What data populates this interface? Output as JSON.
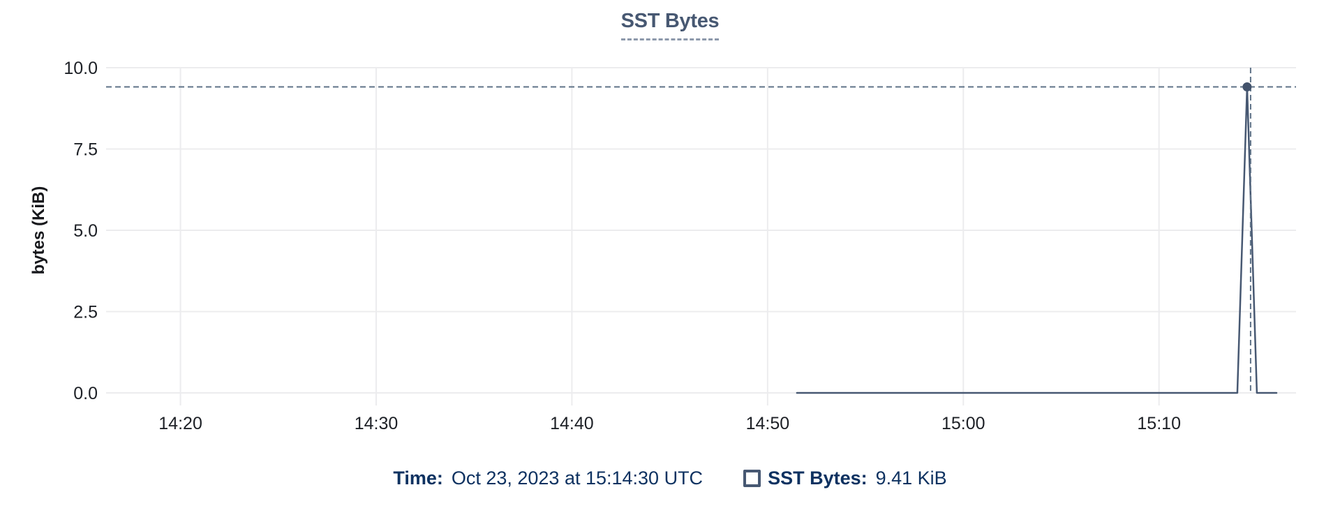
{
  "chart_data": {
    "type": "line",
    "title": "SST Bytes",
    "ylabel": "bytes (KiB)",
    "ylim": [
      0,
      10
    ],
    "y_ticks": [
      0,
      2.5,
      5,
      7.5,
      10
    ],
    "y_tick_decimals": 1,
    "x_ticks": [
      "14:20",
      "14:30",
      "14:40",
      "14:50",
      "15:00",
      "15:10"
    ],
    "x_domain": [
      "14:16:12",
      "15:17:00"
    ],
    "grid": true,
    "legend_position": "bottom",
    "series": [
      {
        "name": "SST Bytes",
        "unit": "KiB",
        "points": [
          [
            "14:51:30",
            0
          ],
          [
            "15:14:00",
            0
          ],
          [
            "15:14:30",
            9.41
          ],
          [
            "15:15:00",
            0
          ],
          [
            "15:16:00",
            0
          ]
        ]
      }
    ],
    "crosshair": {
      "time": "15:14:30",
      "value": 9.41,
      "value_label": "9.41 KiB"
    }
  },
  "legend": {
    "time_label": "Time:",
    "time_value": "Oct 23, 2023 at 15:14:30 UTC",
    "series_label": "SST Bytes:",
    "series_value": "9.41 KiB"
  },
  "colors": {
    "line": "#475872",
    "dot": "#43536c",
    "crosshair": "#5e7287",
    "grid": "#ececee",
    "title": "#475872",
    "title_underline": "#8d99ab",
    "legend_text": "#0e3261",
    "tick_text": "#1d2026",
    "axis_label_text": "#17181c",
    "checkbox_border": "#475872",
    "background": "#ffffff"
  }
}
